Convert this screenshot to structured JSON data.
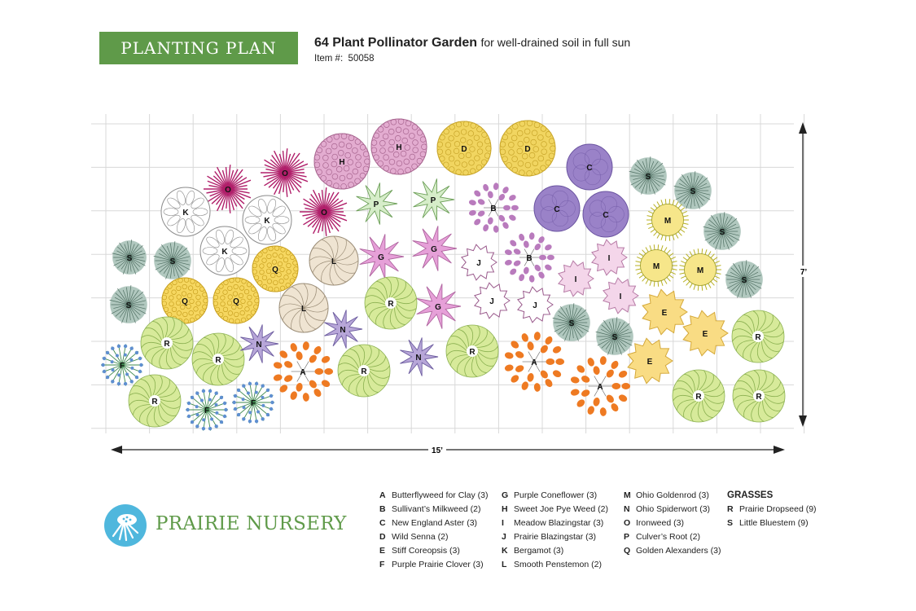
{
  "header": {
    "banner": "PLANTING PLAN",
    "title_bold": "64 Plant Pollinator Garden",
    "title_rest": "for well-drained soil in full sun",
    "item_label": "Item #:",
    "item_number": "50058"
  },
  "dimensions": {
    "width": "15’",
    "height": "7’"
  },
  "brand": {
    "name": "PRAIRIE NURSERY",
    "color": "#5f9a49"
  },
  "legend": {
    "col1": [
      {
        "code": "A",
        "name": "Butterflyweed for Clay (3)"
      },
      {
        "code": "B",
        "name": "Sullivant’s Milkweed (2)"
      },
      {
        "code": "C",
        "name": "New England Aster (3)"
      },
      {
        "code": "D",
        "name": "Wild Senna (2)"
      },
      {
        "code": "E",
        "name": "Stiff Coreopsis (3)"
      },
      {
        "code": "F",
        "name": "Purple Prairie Clover (3)"
      }
    ],
    "col2": [
      {
        "code": "G",
        "name": "Purple Coneflower (3)"
      },
      {
        "code": "H",
        "name": "Sweet Joe Pye Weed (2)"
      },
      {
        "code": "I",
        "name": "Meadow Blazingstar (3)"
      },
      {
        "code": "J",
        "name": "Prairie Blazingstar (3)"
      },
      {
        "code": "K",
        "name": "Bergamot (3)"
      },
      {
        "code": "L",
        "name": "Smooth Penstemon (2)"
      }
    ],
    "col3": [
      {
        "code": "M",
        "name": "Ohio Goldenrod (3)"
      },
      {
        "code": "N",
        "name": "Ohio Spiderwort (3)"
      },
      {
        "code": "O",
        "name": "Ironweed (3)"
      },
      {
        "code": "P",
        "name": "Culver’s Root (2)"
      },
      {
        "code": "Q",
        "name": "Golden Alexanders (3)"
      }
    ],
    "grasses_heading": "GRASSES",
    "col4": [
      {
        "code": "R",
        "name": "Prairie Dropseed (9)"
      },
      {
        "code": "S",
        "name": "Little Bluestem (9)"
      }
    ]
  },
  "plant_styles": {
    "A": {
      "style": "dots",
      "color": "#ee7a22"
    },
    "B": {
      "style": "dots",
      "color": "#b97bbd"
    },
    "C": {
      "style": "blob",
      "color": "#9a82c8"
    },
    "D": {
      "style": "curls",
      "color": "#f1d560"
    },
    "E": {
      "style": "burst",
      "color": "#f9dc84"
    },
    "F": {
      "style": "puff",
      "color": "#5f8fd0"
    },
    "G": {
      "style": "star",
      "color": "#e6a0d8"
    },
    "H": {
      "style": "curls",
      "color": "#e3acd0"
    },
    "I": {
      "style": "burst",
      "color": "#f4d6ea"
    },
    "J": {
      "style": "burst",
      "color": "#ffffff"
    },
    "K": {
      "style": "outline",
      "color": "#ffffff"
    },
    "L": {
      "style": "pinwheel",
      "color": "#efe4d2"
    },
    "M": {
      "style": "sun",
      "color": "#f6e68a"
    },
    "N": {
      "style": "star",
      "color": "#b7a6d8"
    },
    "O": {
      "style": "spikes",
      "color": "#b01f6a"
    },
    "P": {
      "style": "star",
      "color": "#d6edc9"
    },
    "Q": {
      "style": "curls",
      "color": "#f6d760"
    },
    "R": {
      "style": "swirl",
      "color": "#d7ea9a"
    },
    "S": {
      "style": "spikes",
      "color": "#a9c2b8"
    }
  },
  "plants": [
    {
      "code": "H"
    },
    {
      "code": "H"
    },
    {
      "code": "D"
    },
    {
      "code": "D"
    },
    {
      "code": "O"
    },
    {
      "code": "O"
    },
    {
      "code": "O"
    },
    {
      "code": "K"
    },
    {
      "code": "K"
    },
    {
      "code": "K"
    },
    {
      "code": "P"
    },
    {
      "code": "P"
    },
    {
      "code": "C"
    },
    {
      "code": "C"
    },
    {
      "code": "C"
    },
    {
      "code": "S"
    },
    {
      "code": "S"
    },
    {
      "code": "S"
    },
    {
      "code": "S"
    },
    {
      "code": "S"
    },
    {
      "code": "S"
    },
    {
      "code": "S"
    },
    {
      "code": "S"
    },
    {
      "code": "S"
    },
    {
      "code": "M"
    },
    {
      "code": "M"
    },
    {
      "code": "M"
    },
    {
      "code": "B"
    },
    {
      "code": "B"
    },
    {
      "code": "Q"
    },
    {
      "code": "Q"
    },
    {
      "code": "Q"
    },
    {
      "code": "L"
    },
    {
      "code": "L"
    },
    {
      "code": "G"
    },
    {
      "code": "G"
    },
    {
      "code": "G"
    },
    {
      "code": "J"
    },
    {
      "code": "J"
    },
    {
      "code": "J"
    },
    {
      "code": "I"
    },
    {
      "code": "I"
    },
    {
      "code": "I"
    },
    {
      "code": "E"
    },
    {
      "code": "E"
    },
    {
      "code": "E"
    },
    {
      "code": "R"
    },
    {
      "code": "R"
    },
    {
      "code": "R"
    },
    {
      "code": "R"
    },
    {
      "code": "R"
    },
    {
      "code": "R"
    },
    {
      "code": "R"
    },
    {
      "code": "R"
    },
    {
      "code": "R"
    },
    {
      "code": "N"
    },
    {
      "code": "N"
    },
    {
      "code": "N"
    },
    {
      "code": "A"
    },
    {
      "code": "A"
    },
    {
      "code": "A"
    },
    {
      "code": "F"
    },
    {
      "code": "F"
    },
    {
      "code": "F"
    }
  ]
}
